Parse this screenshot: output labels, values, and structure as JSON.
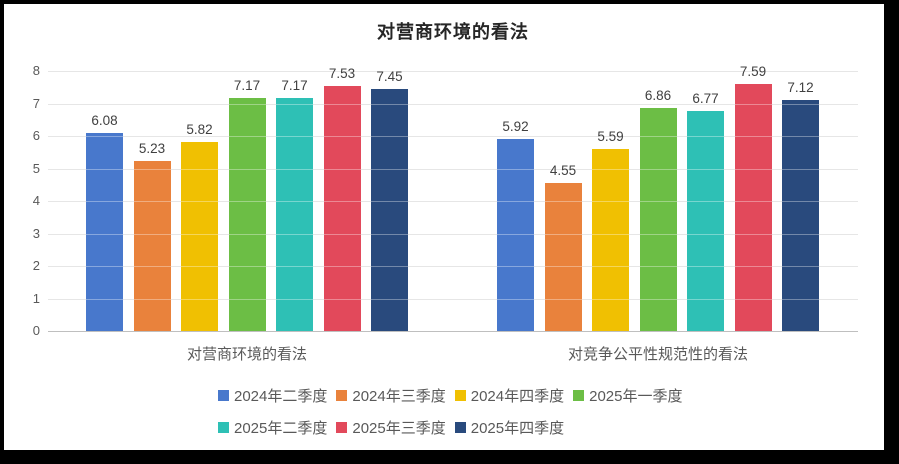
{
  "frame": {
    "border_color": "#000000",
    "background": "#ffffff"
  },
  "chart_data": {
    "type": "bar",
    "title": "对营商环境的看法",
    "categories": [
      "对营商环境的看法",
      "对竞争公平性规范性的看法"
    ],
    "series": [
      {
        "name": "2024年二季度",
        "color": "#4878CC",
        "values": [
          6.08,
          5.92
        ]
      },
      {
        "name": "2024年三季度",
        "color": "#E9823C",
        "values": [
          5.23,
          4.55
        ]
      },
      {
        "name": "2024年四季度",
        "color": "#F0C002",
        "values": [
          5.82,
          5.59
        ]
      },
      {
        "name": "2025年一季度",
        "color": "#6CBE45",
        "values": [
          7.17,
          6.86
        ]
      },
      {
        "name": "2025年二季度",
        "color": "#2EC0B5",
        "values": [
          7.17,
          6.77
        ]
      },
      {
        "name": "2025年三季度",
        "color": "#E2495B",
        "values": [
          7.53,
          7.59
        ]
      },
      {
        "name": "2025年四季度",
        "color": "#294A7D",
        "values": [
          7.45,
          7.12
        ]
      }
    ],
    "ylim": [
      0,
      8
    ],
    "yticks": [
      0,
      1,
      2,
      3,
      4,
      5,
      6,
      7,
      8
    ],
    "grid": true,
    "value_labels_decimals": 2,
    "legend_position": "bottom",
    "legend_rows": [
      [
        "2024年二季度",
        "2024年三季度",
        "2024年四季度",
        "2025年一季度"
      ],
      [
        "2025年二季度",
        "2025年三季度",
        "2025年四季度"
      ]
    ],
    "text_colors": {
      "title": "#262626",
      "axis": "#595959",
      "data_label": "#404040",
      "gridline": "#d9d9d9"
    }
  }
}
